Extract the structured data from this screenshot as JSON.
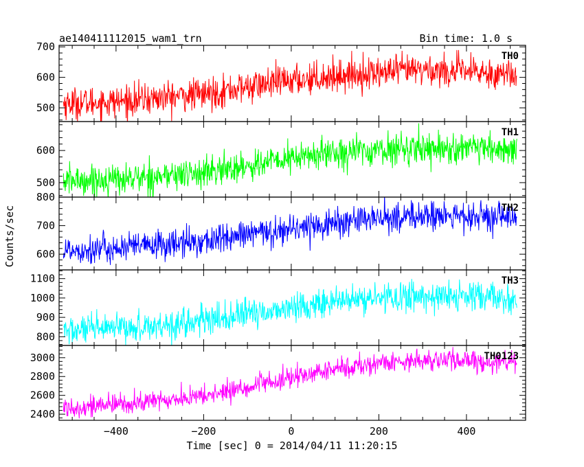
{
  "header": {
    "left_title": "ae140411112015_wam1_trn",
    "right_title": "Bin time: 1.0 s"
  },
  "chart_data": {
    "type": "line",
    "xlabel": "Time [sec] 0 = 2014/04/11 11:20:15",
    "ylabel": "Counts/sec",
    "xlim": [
      -530,
      535
    ],
    "x_ticks": [
      -400,
      -200,
      0,
      200,
      400
    ],
    "x_tick_labels": [
      "−400",
      "−200",
      "0",
      "200",
      "400"
    ],
    "x_range": [
      -520,
      515
    ],
    "bin_time_s": 1.0,
    "panels": [
      {
        "name": "TH0",
        "color": "#ff0000",
        "ylim": [
          455,
          705
        ],
        "y_ticks": [
          500,
          600,
          700
        ],
        "y_tick_labels": [
          "500",
          "600",
          "700"
        ],
        "trend": [
          [
            -520,
            515
          ],
          [
            -400,
            520
          ],
          [
            -200,
            545
          ],
          [
            0,
            590
          ],
          [
            100,
            605
          ],
          [
            200,
            615
          ],
          [
            300,
            625
          ],
          [
            400,
            618
          ],
          [
            515,
            610
          ]
        ],
        "noise": 26
      },
      {
        "name": "TH1",
        "color": "#00ff00",
        "ylim": [
          455,
          690
        ],
        "y_ticks": [
          500,
          600
        ],
        "y_tick_labels": [
          "500",
          "600"
        ],
        "trend": [
          [
            -520,
            505
          ],
          [
            -400,
            510
          ],
          [
            -200,
            530
          ],
          [
            0,
            575
          ],
          [
            100,
            595
          ],
          [
            200,
            600
          ],
          [
            300,
            610
          ],
          [
            400,
            603
          ],
          [
            515,
            600
          ]
        ],
        "noise": 24
      },
      {
        "name": "TH2",
        "color": "#0000ff",
        "ylim": [
          545,
          800
        ],
        "y_ticks": [
          600,
          700,
          800
        ],
        "y_tick_labels": [
          "600",
          "700",
          "800"
        ],
        "trend": [
          [
            -520,
            615
          ],
          [
            -400,
            620
          ],
          [
            -200,
            645
          ],
          [
            0,
            690
          ],
          [
            100,
            710
          ],
          [
            200,
            725
          ],
          [
            300,
            735
          ],
          [
            400,
            730
          ],
          [
            515,
            725
          ]
        ],
        "noise": 26
      },
      {
        "name": "TH3",
        "color": "#00ffff",
        "ylim": [
          755,
          1145
        ],
        "y_ticks": [
          800,
          900,
          1000,
          1100
        ],
        "y_tick_labels": [
          "800",
          "900",
          "1000",
          "1100"
        ],
        "trend": [
          [
            -520,
            830
          ],
          [
            -400,
            840
          ],
          [
            -200,
            880
          ],
          [
            0,
            950
          ],
          [
            100,
            980
          ],
          [
            200,
            1000
          ],
          [
            300,
            1010
          ],
          [
            400,
            1005
          ],
          [
            515,
            995
          ]
        ],
        "noise": 38
      },
      {
        "name": "TH0123",
        "color": "#ff00ff",
        "ylim": [
          2335,
          3130
        ],
        "y_ticks": [
          2400,
          2600,
          2800,
          3000
        ],
        "y_tick_labels": [
          "2400",
          "2600",
          "2800",
          "3000"
        ],
        "trend": [
          [
            -520,
            2470
          ],
          [
            -400,
            2500
          ],
          [
            -200,
            2590
          ],
          [
            0,
            2780
          ],
          [
            100,
            2880
          ],
          [
            200,
            2940
          ],
          [
            300,
            2980
          ],
          [
            400,
            2960
          ],
          [
            515,
            2950
          ]
        ],
        "noise": 55
      }
    ]
  }
}
